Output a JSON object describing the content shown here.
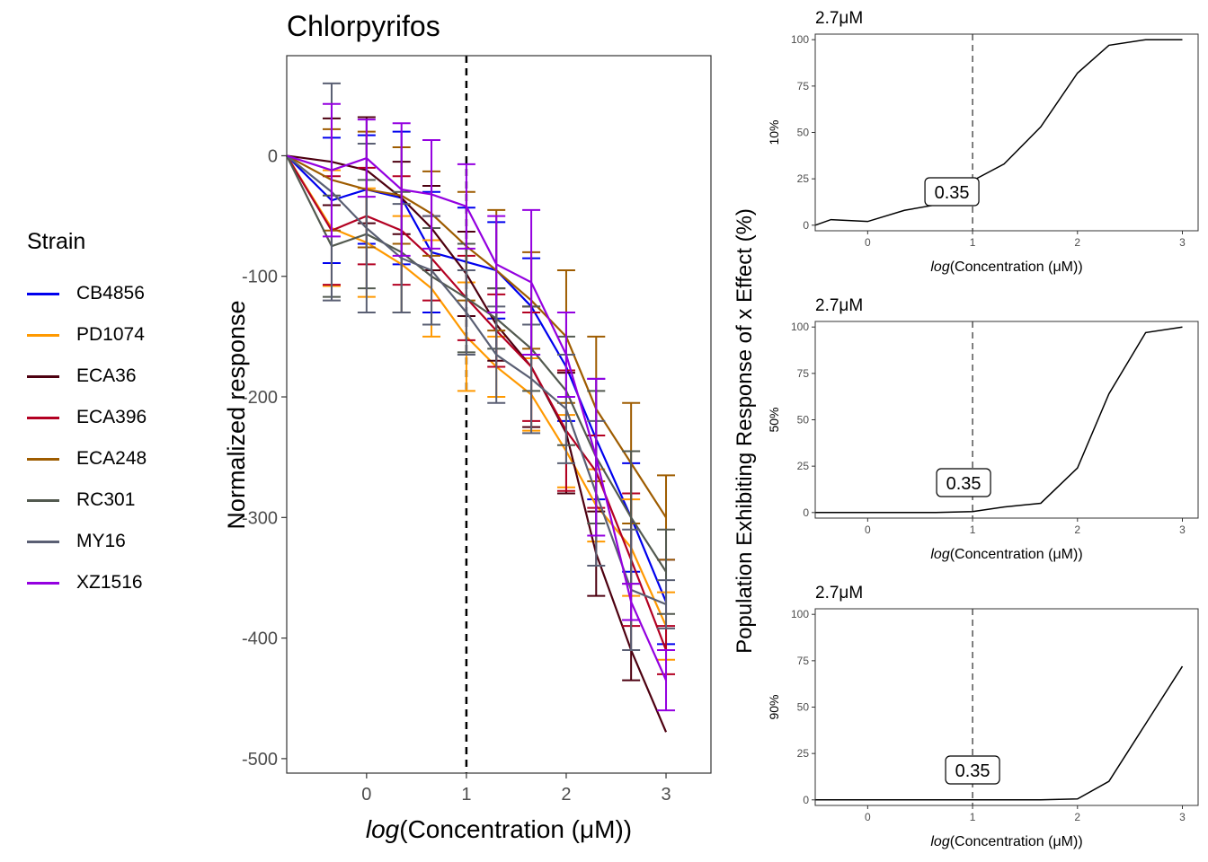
{
  "chart_data": [
    {
      "type": "line",
      "title": "Chlorpyrifos",
      "xlabel_prefix": "log",
      "xlabel_inner": "Concentration (μM)",
      "ylabel": "Normalized response",
      "xlim": [
        -0.8,
        3.45
      ],
      "ylim": [
        -512,
        83
      ],
      "x_ticks": [
        0,
        1,
        2,
        3
      ],
      "y_ticks": [
        0,
        -100,
        -200,
        -300,
        -400,
        -500
      ],
      "vline_x": 1,
      "x": [
        -0.8,
        -0.35,
        0,
        0.35,
        0.65,
        1,
        1.3,
        1.65,
        2,
        2.3,
        2.65,
        3
      ],
      "legend_title": "Strain",
      "series": [
        {
          "name": "CB4856",
          "color": "#0000ee",
          "values": [
            0,
            -37,
            -28,
            -35,
            -80,
            -88,
            -95,
            -125,
            -175,
            -235,
            -300,
            -370
          ],
          "err": [
            0,
            52,
            45,
            55,
            50,
            45,
            40,
            40,
            45,
            50,
            45,
            35
          ]
        },
        {
          "name": "PD1074",
          "color": "#ff9900",
          "values": [
            0,
            -60,
            -72,
            -90,
            -110,
            -150,
            -175,
            -198,
            -245,
            -290,
            -325,
            -390
          ],
          "err": [
            0,
            48,
            45,
            40,
            40,
            45,
            25,
            30,
            30,
            30,
            40,
            28
          ]
        },
        {
          "name": "ECA36",
          "color": "#4d0010",
          "values": [
            0,
            -5,
            -12,
            -35,
            -60,
            -98,
            -140,
            -175,
            -230,
            -330,
            -410,
            -478
          ],
          "err": [
            0,
            36,
            44,
            30,
            35,
            35,
            30,
            50,
            50,
            35,
            25,
            0
          ]
        },
        {
          "name": "ECA396",
          "color": "#b30022",
          "values": [
            0,
            -62,
            -50,
            -62,
            -85,
            -118,
            -145,
            -175,
            -228,
            -262,
            -335,
            -410
          ],
          "err": [
            0,
            45,
            40,
            45,
            35,
            35,
            30,
            45,
            50,
            30,
            55,
            20
          ]
        },
        {
          "name": "ECA248",
          "color": "#9e5c00",
          "values": [
            0,
            -20,
            -28,
            -33,
            -48,
            -75,
            -95,
            -120,
            -150,
            -210,
            -255,
            -300
          ],
          "err": [
            0,
            42,
            48,
            40,
            35,
            45,
            50,
            40,
            55,
            60,
            50,
            35
          ]
        },
        {
          "name": "RC301",
          "color": "#52594f",
          "values": [
            0,
            -75,
            -65,
            -80,
            -100,
            -118,
            -135,
            -160,
            -195,
            -250,
            -300,
            -345
          ],
          "err": [
            0,
            42,
            45,
            50,
            40,
            45,
            25,
            35,
            45,
            55,
            55,
            35
          ]
        },
        {
          "name": "MY16",
          "color": "#5a5f73",
          "values": [
            0,
            -30,
            -60,
            -85,
            -95,
            -130,
            -165,
            -185,
            -210,
            -280,
            -360,
            -372
          ],
          "err": [
            0,
            90,
            70,
            45,
            45,
            35,
            40,
            45,
            45,
            60,
            50,
            20
          ]
        },
        {
          "name": "XZ1516",
          "color": "#9400e0",
          "values": [
            0,
            -12,
            -2,
            -28,
            -32,
            -42,
            -90,
            -105,
            -165,
            -250,
            -370,
            -435
          ],
          "err": [
            0,
            55,
            32,
            55,
            45,
            35,
            40,
            60,
            35,
            65,
            15,
            25
          ]
        }
      ]
    },
    {
      "type": "line",
      "title": "2.7μM",
      "ylabel": "10%",
      "xlabel_prefix": "log",
      "xlabel_inner": "Concentration (μM)",
      "xlim": [
        -0.5,
        3.15
      ],
      "ylim": [
        -3,
        103
      ],
      "x_ticks": [
        0,
        1,
        2,
        3
      ],
      "y_ticks": [
        0,
        25,
        50,
        75,
        100
      ],
      "vline_x": 1,
      "annotation": "0.35",
      "x": [
        -0.5,
        -0.35,
        0,
        0.35,
        0.65,
        1,
        1.3,
        1.65,
        2,
        2.3,
        2.65,
        3
      ],
      "values": [
        0,
        3,
        2,
        8,
        11,
        24,
        33,
        53,
        82,
        97,
        100,
        100
      ]
    },
    {
      "type": "line",
      "title": "2.7μM",
      "ylabel": "50%",
      "xlabel_prefix": "log",
      "xlabel_inner": "Concentration (μM)",
      "xlim": [
        -0.5,
        3.15
      ],
      "ylim": [
        -3,
        103
      ],
      "x_ticks": [
        0,
        1,
        2,
        3
      ],
      "y_ticks": [
        0,
        25,
        50,
        75,
        100
      ],
      "vline_x": 1,
      "annotation": "0.35",
      "x": [
        -0.5,
        -0.35,
        0,
        0.35,
        0.65,
        1,
        1.3,
        1.65,
        2,
        2.3,
        2.65,
        3
      ],
      "values": [
        0,
        0,
        0,
        0,
        0,
        0.5,
        3,
        5,
        24,
        64,
        97,
        100
      ]
    },
    {
      "type": "line",
      "title": "2.7μM",
      "ylabel": "90%",
      "xlabel_prefix": "log",
      "xlabel_inner": "Concentration (μM)",
      "xlim": [
        -0.5,
        3.15
      ],
      "ylim": [
        -3,
        103
      ],
      "x_ticks": [
        0,
        1,
        2,
        3
      ],
      "y_ticks": [
        0,
        25,
        50,
        75,
        100
      ],
      "vline_x": 1,
      "annotation": "0.35",
      "x": [
        -0.5,
        -0.35,
        0,
        0.35,
        0.65,
        1,
        1.3,
        1.65,
        2,
        2.3,
        2.65,
        3
      ],
      "values": [
        0,
        0,
        0,
        0,
        0,
        0,
        0,
        0,
        0.5,
        10,
        41,
        72
      ]
    }
  ],
  "shared_ylabel": "Population Exhibiting Response of x Effect (%)"
}
